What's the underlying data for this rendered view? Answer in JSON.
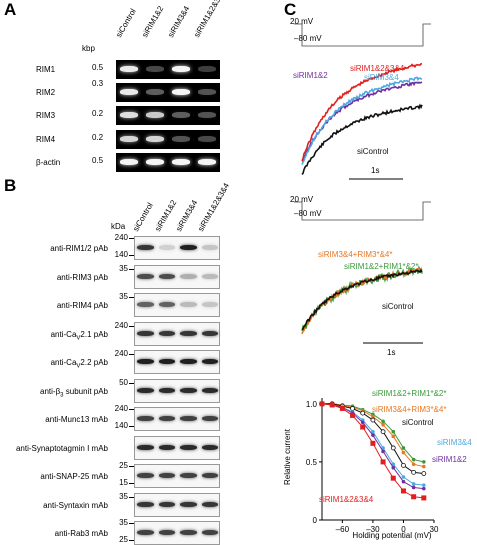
{
  "panels": {
    "a": "A",
    "b": "B",
    "c": "C"
  },
  "panel_a": {
    "lanes": [
      "siControl",
      "siRIM1&2",
      "siRIM3&4",
      "siRIM1&2&3&4"
    ],
    "kbp_label": "kbp",
    "rows": [
      {
        "name": "RIM1",
        "kbp": "0.5",
        "bands": [
          0.9,
          0.15,
          0.95,
          0.1
        ]
      },
      {
        "name": "RIM2",
        "kbp": "0.3",
        "bands": [
          0.9,
          0.25,
          0.95,
          0.2
        ]
      },
      {
        "name": "RIM3",
        "kbp": "0.2",
        "bands": [
          0.85,
          0.75,
          0.25,
          0.2
        ]
      },
      {
        "name": "RIM4",
        "kbp": "0.2",
        "bands": [
          0.8,
          0.8,
          0.2,
          0.15
        ]
      },
      {
        "name": "β-actin",
        "kbp": "0.5",
        "bands": [
          0.95,
          0.95,
          0.95,
          0.95
        ]
      }
    ]
  },
  "panel_b": {
    "lanes": [
      "siControl",
      "siRIM1&2",
      "siRIM3&4",
      "siRIM1&2&3&4"
    ],
    "kda_label": "kDa",
    "rows": [
      {
        "name": "anti-RIM1/2 pAb",
        "markers": [
          "240",
          "140"
        ],
        "bands": [
          0.8,
          0.1,
          0.9,
          0.15
        ]
      },
      {
        "name": "anti-RIM3 pAb",
        "markers": [
          "35"
        ],
        "bands": [
          0.7,
          0.7,
          0.25,
          0.2
        ]
      },
      {
        "name": "anti-RIM4 pAb",
        "markers": [
          "35"
        ],
        "bands": [
          0.6,
          0.6,
          0.2,
          0.15
        ]
      },
      {
        "name_pre": "anti-Ca",
        "name_sub": "V",
        "name_post": "2.1 pAb",
        "markers": [
          "240"
        ],
        "bands": [
          0.8,
          0.8,
          0.8,
          0.8
        ]
      },
      {
        "name_pre": "anti-Ca",
        "name_sub": "V",
        "name_post": "2.2 pAb",
        "markers": [
          "240"
        ],
        "bands": [
          0.9,
          0.9,
          0.9,
          0.9
        ]
      },
      {
        "name_pre": "anti-β",
        "name_sub": "3",
        "name_post": " subunit pAb",
        "markers": [
          "50"
        ],
        "bands": [
          0.85,
          0.85,
          0.85,
          0.85
        ]
      },
      {
        "name": "anti-Munc13 mAb",
        "markers": [
          "240",
          "140"
        ],
        "bands": [
          0.75,
          0.75,
          0.75,
          0.75
        ]
      },
      {
        "name": "anti-Synaptotagmin I mAb",
        "markers": [],
        "bands": [
          0.85,
          0.85,
          0.85,
          0.85
        ]
      },
      {
        "name": "anti-SNAP-25 mAb",
        "markers": [
          "25",
          "15"
        ],
        "bands": [
          0.75,
          0.75,
          0.75,
          0.75
        ]
      },
      {
        "name": "anti-Syntaxin mAb",
        "markers": [
          "35"
        ],
        "bands": [
          0.8,
          0.8,
          0.8,
          0.8
        ]
      },
      {
        "name": "anti-Rab3 mAb",
        "markers": [
          "35",
          "25"
        ],
        "bands": [
          0.75,
          0.75,
          0.75,
          0.75
        ]
      }
    ]
  },
  "panel_c_top": {
    "step_label": "20 mV",
    "hold_label": "–80 mV",
    "scale_label": "1s",
    "traces": [
      {
        "name": "siRIM1&2&3&4",
        "color": "#e0201e"
      },
      {
        "name": "siRIM3&4",
        "color": "#4fa8e0"
      },
      {
        "name": "siRIM1&2",
        "color": "#7030a0"
      },
      {
        "name": "siControl",
        "color": "#111111"
      }
    ]
  },
  "panel_c_mid": {
    "step_label": "20 mV",
    "hold_label": "–80 mV",
    "scale_label": "1s",
    "traces": [
      {
        "name": "siRIM3&4+RIM3*&4*",
        "color": "#e87722"
      },
      {
        "name": "siRIM1&2+RIM1*&2*",
        "color": "#3a9a3a"
      },
      {
        "name": "siControl",
        "color": "#111111"
      }
    ]
  },
  "chart_data": {
    "type": "line",
    "xlabel": "Holding potential (mV)",
    "ylabel": "Relative current",
    "xlim": [
      -80,
      30
    ],
    "ylim": [
      0,
      1.05
    ],
    "xticks": [
      "–60",
      "–30",
      "0",
      "30"
    ],
    "yticks": [
      "0",
      "0.5",
      "1.0"
    ],
    "x": [
      -80,
      -70,
      -60,
      -50,
      -40,
      -30,
      -20,
      -10,
      0,
      10,
      20
    ],
    "series": [
      {
        "name": "siRIM1&2+RIM1*&2*",
        "color": "#3a9a3a",
        "values": [
          1.0,
          1.0,
          0.99,
          0.98,
          0.95,
          0.91,
          0.85,
          0.76,
          0.62,
          0.52,
          0.5
        ]
      },
      {
        "name": "siRIM3&4+RIM3*&4*",
        "color": "#e87722",
        "values": [
          1.0,
          1.0,
          0.99,
          0.97,
          0.94,
          0.89,
          0.82,
          0.72,
          0.58,
          0.48,
          0.46
        ]
      },
      {
        "name": "siControl",
        "color": "#111111",
        "values": [
          1.0,
          1.0,
          0.98,
          0.96,
          0.92,
          0.86,
          0.76,
          0.62,
          0.47,
          0.41,
          0.4
        ]
      },
      {
        "name": "siRIM3&4",
        "color": "#4fa8e0",
        "values": [
          1.0,
          0.99,
          0.97,
          0.93,
          0.86,
          0.76,
          0.62,
          0.48,
          0.37,
          0.31,
          0.3
        ]
      },
      {
        "name": "siRIM1&2",
        "color": "#7030a0",
        "values": [
          1.0,
          0.99,
          0.97,
          0.92,
          0.84,
          0.73,
          0.59,
          0.45,
          0.33,
          0.28,
          0.27
        ]
      },
      {
        "name": "siRIM1&2&3&4",
        "color": "#e0201e",
        "values": [
          1.0,
          0.99,
          0.96,
          0.9,
          0.8,
          0.66,
          0.5,
          0.36,
          0.25,
          0.2,
          0.19
        ]
      }
    ]
  }
}
